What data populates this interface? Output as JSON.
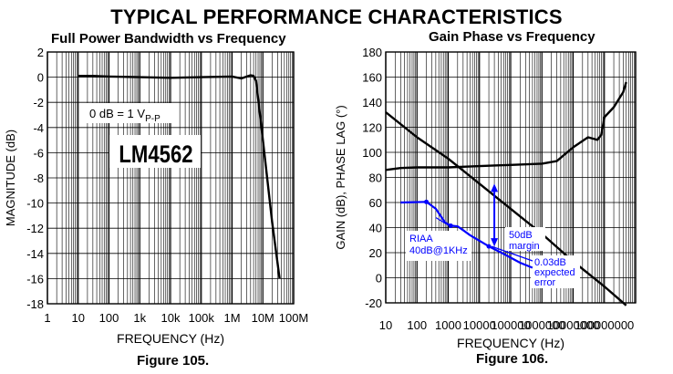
{
  "page_title": "TYPICAL PERFORMANCE CHARACTERISTICS",
  "chart_data": [
    {
      "type": "line",
      "title": "Full Power Bandwidth vs Frequency",
      "caption": "Figure 105.",
      "xlabel": "FREQUENCY (Hz)",
      "ylabel": "MAGNITUDE (dB)",
      "xscale": "log",
      "xlim": [
        1,
        100000000
      ],
      "ylim": [
        -18,
        2
      ],
      "x_ticks": [
        "1",
        "10",
        "100",
        "1k",
        "10k",
        "100k",
        "1M",
        "10M",
        "100M"
      ],
      "y_ticks": [
        "2",
        "0",
        "-2",
        "-4",
        "-6",
        "-8",
        "-10",
        "-12",
        "-14",
        "-16",
        "-18"
      ],
      "grid": true,
      "annotations": {
        "ref_main": "0 dB = 1 V",
        "ref_sub": "P-P",
        "part_label": "LM4562"
      },
      "series": [
        {
          "x": [
            10,
            30,
            100,
            1000,
            10000,
            100000,
            1000000,
            2000000,
            3000000,
            4000000,
            5000000,
            6000000,
            10000000,
            20000000,
            35000000
          ],
          "y": [
            0.1,
            0.1,
            0.05,
            0.0,
            -0.05,
            0.0,
            0.05,
            -0.1,
            0.05,
            0.15,
            0.1,
            -0.3,
            -5.0,
            -11.5,
            -16.0
          ]
        }
      ]
    },
    {
      "type": "line",
      "title": "Gain Phase vs Frequency",
      "caption": "Figure 106.",
      "xlabel": "FREQUENCY (Hz)",
      "ylabel": "GAIN (dB), PHASE LAG (°)",
      "xscale": "log",
      "xlim": [
        10,
        1000000000
      ],
      "ylim": [
        -20,
        180
      ],
      "x_ticks": [
        "10",
        "100",
        "1000",
        "10000",
        "100000",
        "1000000",
        "10000000",
        "100000000"
      ],
      "y_ticks": [
        "180",
        "160",
        "140",
        "120",
        "100",
        "80",
        "60",
        "40",
        "20",
        "0",
        "-20"
      ],
      "grid": true,
      "series": [
        {
          "x": [
            10,
            100,
            1000,
            10000,
            100000,
            1000000,
            10000000,
            100000000,
            500000000
          ],
          "y": [
            132,
            112,
            95,
            75,
            55,
            35,
            13,
            -7,
            -22
          ]
        },
        {
          "x": [
            10,
            30,
            100,
            1000,
            3000,
            10000,
            30000,
            100000,
            1000000,
            3000000,
            10000000,
            30000000,
            60000000,
            80000000,
            100000000,
            200000000,
            400000000,
            500000000
          ],
          "y": [
            86,
            87.5,
            88,
            88,
            88.5,
            89,
            89.5,
            90,
            91,
            93,
            104,
            112,
            110,
            114,
            128,
            136,
            148,
            156
          ]
        },
        {
          "x": [
            30,
            200,
            400,
            800,
            1200,
            2000,
            3000,
            5000,
            10000,
            20000,
            50000,
            100000,
            200000,
            500000
          ],
          "y": [
            60,
            60.5,
            55,
            44,
            41.5,
            41,
            38,
            34,
            29.5,
            25,
            20,
            16,
            12,
            8
          ],
          "color": "#0000ff"
        }
      ],
      "annotations": {
        "riaa_line1": "RIAA",
        "riaa_line2": "40dB@1KHz",
        "margin_line1": "50dB",
        "margin_line2": "margin",
        "error_line1": "0.03dB",
        "error_line2": "expected",
        "error_line3": "error",
        "annotation_color": "#0000ff"
      }
    }
  ]
}
